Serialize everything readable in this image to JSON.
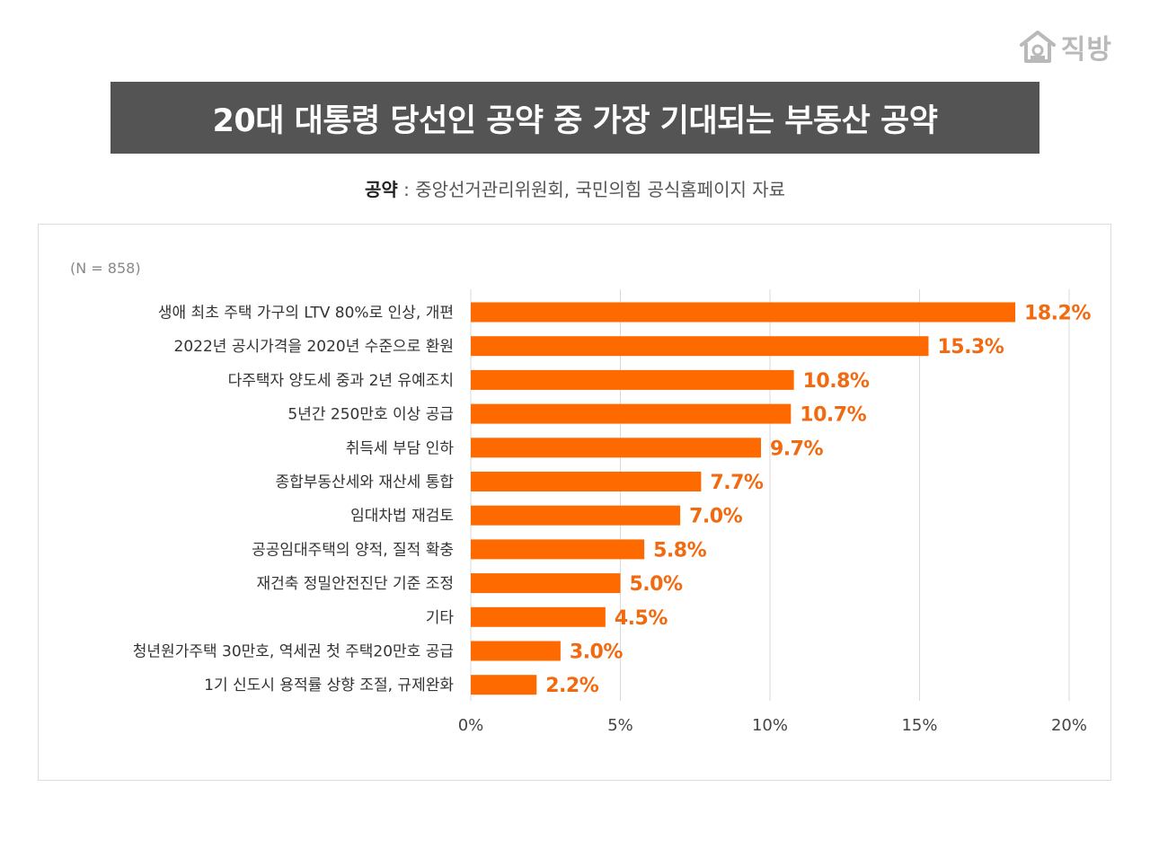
{
  "logo": {
    "text": "직방",
    "icon": "house-icon"
  },
  "title": "20대 대통령 당선인 공약 중 가장 기대되는 부동산 공약",
  "source": {
    "label": "공약",
    "separator": " : ",
    "text": "중앙선거관리위원회, 국민의힘 공식홈페이지 자료"
  },
  "colors": {
    "bar": "#ff6a00",
    "value_label": "#f26a10",
    "title_bg": "#545454"
  },
  "chart_data": {
    "type": "bar",
    "orientation": "horizontal",
    "note": "(N = 858)",
    "categories": [
      "생애 최초 주택 가구의 LTV 80%로 인상, 개편",
      "2022년 공시가격을 2020년 수준으로 환원",
      "다주택자 양도세 중과 2년 유예조치",
      "5년간 250만호 이상 공급",
      "취득세 부담 인하",
      "종합부동산세와 재산세 통합",
      "임대차법 재검토",
      "공공임대주택의 양적, 질적 확충",
      "재건축 정밀안전진단 기준 조정",
      "기타",
      "청년원가주택 30만호, 역세권 첫 주택20만호 공급",
      "1기 신도시 용적률 상향 조절, 규제완화"
    ],
    "values": [
      18.2,
      15.3,
      10.8,
      10.7,
      9.7,
      7.7,
      7.0,
      5.8,
      5.0,
      4.5,
      3.0,
      2.2
    ],
    "value_labels": [
      "18.2%",
      "15.3%",
      "10.8%",
      "10.7%",
      "9.7%",
      "7.7%",
      "7.0%",
      "5.8%",
      "5.0%",
      "4.5%",
      "3.0%",
      "2.2%"
    ],
    "xlim": [
      0,
      20
    ],
    "xticks": [
      0,
      5,
      10,
      15,
      20
    ],
    "xtick_labels": [
      "0%",
      "5%",
      "10%",
      "15%",
      "20%"
    ],
    "grid": "vertical",
    "xlabel": "",
    "ylabel": ""
  }
}
